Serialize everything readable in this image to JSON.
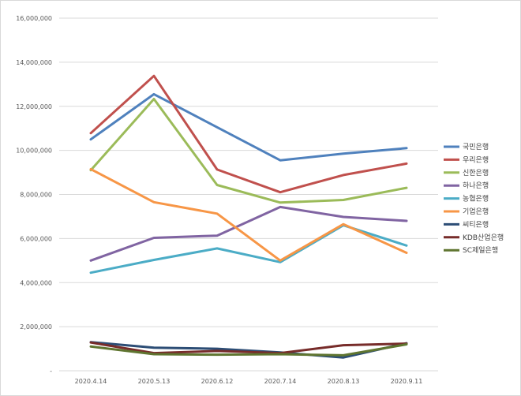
{
  "chart_data": {
    "type": "line",
    "title": "",
    "xlabel": "",
    "ylabel": "",
    "ylim": [
      0,
      16000000
    ],
    "yticks": [
      0,
      2000000,
      4000000,
      6000000,
      8000000,
      10000000,
      12000000,
      14000000,
      16000000
    ],
    "ytick_labels": [
      "-",
      "2,000,000",
      "4,000,000",
      "6,000,000",
      "8,000,000",
      "10,000,000",
      "12,000,000",
      "14,000,000",
      "16,000,000"
    ],
    "categories": [
      "2020.4.14",
      "2020.5.13",
      "2020.6.12",
      "2020.7.14",
      "2020.8.13",
      "2020.9.11"
    ],
    "grid": true,
    "legend_position": "right",
    "series": [
      {
        "name": "국민은행",
        "color": "#4f81bd",
        "values": [
          10500000,
          12550000,
          11050000,
          9550000,
          9850000,
          10100000
        ]
      },
      {
        "name": "우리은행",
        "color": "#c0504d",
        "values": [
          10780000,
          13380000,
          9130000,
          8100000,
          8880000,
          9400000
        ]
      },
      {
        "name": "신한은행",
        "color": "#9bbb59",
        "values": [
          9100000,
          12330000,
          8430000,
          7630000,
          7750000,
          8300000
        ]
      },
      {
        "name": "하나은행",
        "color": "#8064a2",
        "values": [
          5000000,
          6030000,
          6130000,
          7430000,
          6980000,
          6800000
        ]
      },
      {
        "name": "농협은행",
        "color": "#4bacc6",
        "values": [
          4450000,
          5030000,
          5550000,
          4930000,
          6600000,
          5680000
        ]
      },
      {
        "name": "기업은행",
        "color": "#f79646",
        "values": [
          9150000,
          7650000,
          7130000,
          5000000,
          6650000,
          5350000
        ]
      },
      {
        "name": "씨티은행",
        "color": "#2c4d75",
        "values": [
          1300000,
          1050000,
          1000000,
          830000,
          600000,
          1250000
        ]
      },
      {
        "name": "KDB산업은행",
        "color": "#772c2a",
        "values": [
          1280000,
          800000,
          900000,
          800000,
          1160000,
          1230000
        ]
      },
      {
        "name": "SC제일은행",
        "color": "#5f7530",
        "values": [
          1100000,
          750000,
          730000,
          750000,
          700000,
          1200000
        ]
      }
    ]
  }
}
